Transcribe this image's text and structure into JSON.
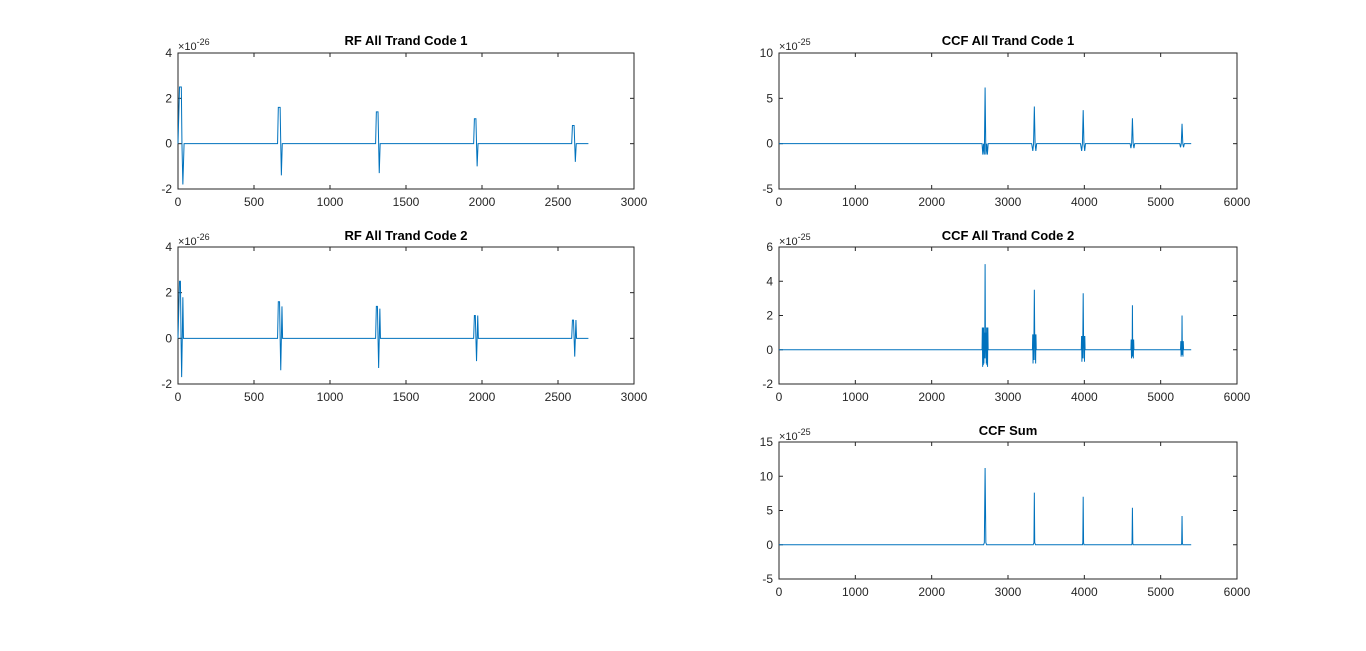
{
  "figure": {
    "background": "#ffffff",
    "line_color": "#0072bd",
    "axis_color": "#262626"
  },
  "chart_data": [
    {
      "id": "rf1",
      "type": "line",
      "title": "RF All Trand Code 1",
      "xlabel": "",
      "ylabel": "",
      "xlim": [
        0,
        3000
      ],
      "ylim": [
        -2,
        4
      ],
      "xticks": [
        0,
        500,
        1000,
        1500,
        2000,
        2500,
        3000
      ],
      "xtick_labels": [
        "0",
        "500",
        "1000",
        "1500",
        "2000",
        "2500",
        "3000"
      ],
      "yticks": [
        -2,
        0,
        2,
        4
      ],
      "ytick_labels": [
        "-2",
        "0",
        "2",
        "4"
      ],
      "y_exponent": {
        "base": "×10",
        "power": "-26"
      },
      "grid": false,
      "legend": "none",
      "series": [
        {
          "values": [
            [
              0,
              0
            ],
            [
              10,
              2.5
            ],
            [
              22,
              2.5
            ],
            [
              26,
              0
            ],
            [
              32,
              -1.8
            ],
            [
              40,
              0
            ],
            [
              60,
              0
            ],
            [
              655,
              0
            ],
            [
              660,
              1.6
            ],
            [
              672,
              1.6
            ],
            [
              676,
              0
            ],
            [
              680,
              -1.4
            ],
            [
              686,
              0
            ],
            [
              1300,
              0
            ],
            [
              1305,
              1.4
            ],
            [
              1316,
              1.4
            ],
            [
              1320,
              0
            ],
            [
              1324,
              -1.3
            ],
            [
              1330,
              0
            ],
            [
              1945,
              0
            ],
            [
              1950,
              1.1
            ],
            [
              1960,
              1.1
            ],
            [
              1964,
              0
            ],
            [
              1968,
              -1.0
            ],
            [
              1974,
              0
            ],
            [
              2590,
              0
            ],
            [
              2595,
              0.8
            ],
            [
              2606,
              0.8
            ],
            [
              2610,
              0
            ],
            [
              2614,
              -0.8
            ],
            [
              2620,
              0
            ],
            [
              2700,
              0
            ]
          ]
        }
      ]
    },
    {
      "id": "rf2",
      "type": "line",
      "title": "RF All Trand Code 2",
      "xlabel": "",
      "ylabel": "",
      "xlim": [
        0,
        3000
      ],
      "ylim": [
        -2,
        4
      ],
      "xticks": [
        0,
        500,
        1000,
        1500,
        2000,
        2500,
        3000
      ],
      "xtick_labels": [
        "0",
        "500",
        "1000",
        "1500",
        "2000",
        "2500",
        "3000"
      ],
      "yticks": [
        -2,
        0,
        2,
        4
      ],
      "ytick_labels": [
        "-2",
        "0",
        "2",
        "4"
      ],
      "y_exponent": {
        "base": "×10",
        "power": "-26"
      },
      "grid": false,
      "legend": "none",
      "series": [
        {
          "values": [
            [
              0,
              0
            ],
            [
              10,
              2.5
            ],
            [
              16,
              2.5
            ],
            [
              20,
              0
            ],
            [
              24,
              -1.7
            ],
            [
              28,
              0
            ],
            [
              32,
              1.8
            ],
            [
              36,
              0
            ],
            [
              60,
              0
            ],
            [
              655,
              0
            ],
            [
              660,
              1.6
            ],
            [
              668,
              1.6
            ],
            [
              672,
              0
            ],
            [
              676,
              -1.4
            ],
            [
              680,
              0
            ],
            [
              684,
              1.4
            ],
            [
              688,
              0
            ],
            [
              1300,
              0
            ],
            [
              1305,
              1.4
            ],
            [
              1312,
              1.4
            ],
            [
              1316,
              0
            ],
            [
              1320,
              -1.3
            ],
            [
              1324,
              0
            ],
            [
              1328,
              1.3
            ],
            [
              1332,
              0
            ],
            [
              1945,
              0
            ],
            [
              1950,
              1.0
            ],
            [
              1956,
              1.0
            ],
            [
              1960,
              0
            ],
            [
              1964,
              -1.0
            ],
            [
              1968,
              0
            ],
            [
              1972,
              1.0
            ],
            [
              1976,
              0
            ],
            [
              2590,
              0
            ],
            [
              2595,
              0.8
            ],
            [
              2602,
              0.8
            ],
            [
              2606,
              0
            ],
            [
              2610,
              -0.8
            ],
            [
              2614,
              0
            ],
            [
              2618,
              0.8
            ],
            [
              2622,
              0
            ],
            [
              2700,
              0
            ]
          ]
        }
      ]
    },
    {
      "id": "ccf1",
      "type": "line",
      "title": "CCF All Trand Code 1",
      "xlabel": "",
      "ylabel": "",
      "xlim": [
        0,
        6000
      ],
      "ylim": [
        -5,
        10
      ],
      "xticks": [
        0,
        1000,
        2000,
        3000,
        4000,
        5000,
        6000
      ],
      "xtick_labels": [
        "0",
        "1000",
        "2000",
        "3000",
        "4000",
        "5000",
        "6000"
      ],
      "yticks": [
        -5,
        0,
        5,
        10
      ],
      "ytick_labels": [
        "-5",
        "0",
        "5",
        "10"
      ],
      "y_exponent": {
        "base": "×10",
        "power": "-25"
      },
      "grid": false,
      "legend": "none",
      "series": [
        {
          "values": [
            [
              0,
              0
            ],
            [
              2660,
              0
            ],
            [
              2670,
              -1.2
            ],
            [
              2680,
              0
            ],
            [
              2690,
              -1.2
            ],
            [
              2700,
              6.2
            ],
            [
              2710,
              -1.2
            ],
            [
              2720,
              0
            ],
            [
              2730,
              -1.2
            ],
            [
              2740,
              0
            ],
            [
              3310,
              0
            ],
            [
              3325,
              -0.8
            ],
            [
              3335,
              0
            ],
            [
              3345,
              4.1
            ],
            [
              3355,
              0
            ],
            [
              3365,
              -0.8
            ],
            [
              3375,
              0
            ],
            [
              3950,
              0
            ],
            [
              3965,
              -0.8
            ],
            [
              3975,
              0
            ],
            [
              3985,
              3.7
            ],
            [
              3995,
              0
            ],
            [
              4005,
              -0.8
            ],
            [
              4015,
              0
            ],
            [
              4600,
              0
            ],
            [
              4610,
              -0.5
            ],
            [
              4620,
              0
            ],
            [
              4630,
              2.8
            ],
            [
              4640,
              0
            ],
            [
              4650,
              -0.5
            ],
            [
              4660,
              0
            ],
            [
              5250,
              0
            ],
            [
              5260,
              -0.4
            ],
            [
              5270,
              0
            ],
            [
              5280,
              2.2
            ],
            [
              5290,
              0
            ],
            [
              5300,
              -0.4
            ],
            [
              5310,
              0
            ],
            [
              5400,
              0
            ]
          ]
        }
      ]
    },
    {
      "id": "ccf2",
      "type": "line",
      "title": "CCF All Trand Code 2",
      "xlabel": "",
      "ylabel": "",
      "xlim": [
        0,
        6000
      ],
      "ylim": [
        -2,
        6
      ],
      "xticks": [
        0,
        1000,
        2000,
        3000,
        4000,
        5000,
        6000
      ],
      "xtick_labels": [
        "0",
        "1000",
        "2000",
        "3000",
        "4000",
        "5000",
        "6000"
      ],
      "yticks": [
        -2,
        0,
        2,
        4,
        6
      ],
      "ytick_labels": [
        "-2",
        "0",
        "2",
        "4",
        "6"
      ],
      "y_exponent": {
        "base": "×10",
        "power": "-25"
      },
      "grid": false,
      "legend": "none",
      "series": [
        {
          "values": [
            [
              0,
              0
            ],
            [
              2660,
              0
            ],
            [
              2664,
              1.3
            ],
            [
              2668,
              -1.0
            ],
            [
              2672,
              1.3
            ],
            [
              2676,
              -0.9
            ],
            [
              2680,
              1.3
            ],
            [
              2684,
              -0.8
            ],
            [
              2688,
              1.0
            ],
            [
              2692,
              -0.5
            ],
            [
              2696,
              0.8
            ],
            [
              2700,
              5.0
            ],
            [
              2704,
              0.8
            ],
            [
              2708,
              -0.5
            ],
            [
              2712,
              1.0
            ],
            [
              2716,
              -0.8
            ],
            [
              2720,
              1.3
            ],
            [
              2724,
              -0.9
            ],
            [
              2728,
              1.3
            ],
            [
              2732,
              -1.0
            ],
            [
              2736,
              1.3
            ],
            [
              2740,
              0
            ],
            [
              3320,
              0
            ],
            [
              3324,
              0.9
            ],
            [
              3328,
              -0.8
            ],
            [
              3332,
              0.9
            ],
            [
              3336,
              -0.6
            ],
            [
              3340,
              0.7
            ],
            [
              3345,
              3.5
            ],
            [
              3350,
              0.7
            ],
            [
              3354,
              -0.6
            ],
            [
              3358,
              0.9
            ],
            [
              3362,
              -0.8
            ],
            [
              3366,
              0.9
            ],
            [
              3370,
              0
            ],
            [
              3960,
              0
            ],
            [
              3964,
              0.8
            ],
            [
              3968,
              -0.7
            ],
            [
              3972,
              0.8
            ],
            [
              3976,
              -0.5
            ],
            [
              3980,
              0.6
            ],
            [
              3985,
              3.3
            ],
            [
              3990,
              0.6
            ],
            [
              3994,
              -0.5
            ],
            [
              3998,
              0.8
            ],
            [
              4002,
              -0.7
            ],
            [
              4006,
              0.8
            ],
            [
              4010,
              0
            ],
            [
              4610,
              0
            ],
            [
              4614,
              0.6
            ],
            [
              4618,
              -0.5
            ],
            [
              4622,
              0.6
            ],
            [
              4626,
              -0.4
            ],
            [
              4630,
              2.6
            ],
            [
              4634,
              -0.4
            ],
            [
              4638,
              0.6
            ],
            [
              4642,
              -0.5
            ],
            [
              4646,
              0.6
            ],
            [
              4650,
              0
            ],
            [
              5260,
              0
            ],
            [
              5264,
              0.5
            ],
            [
              5268,
              -0.4
            ],
            [
              5272,
              0.5
            ],
            [
              5276,
              -0.3
            ],
            [
              5280,
              2.0
            ],
            [
              5284,
              -0.3
            ],
            [
              5288,
              0.5
            ],
            [
              5292,
              -0.4
            ],
            [
              5296,
              0.5
            ],
            [
              5300,
              0
            ],
            [
              5400,
              0
            ]
          ]
        }
      ]
    },
    {
      "id": "ccfsum",
      "type": "line",
      "title": "CCF Sum",
      "xlabel": "",
      "ylabel": "",
      "xlim": [
        0,
        6000
      ],
      "ylim": [
        -5,
        15
      ],
      "xticks": [
        0,
        1000,
        2000,
        3000,
        4000,
        5000,
        6000
      ],
      "xtick_labels": [
        "0",
        "1000",
        "2000",
        "3000",
        "4000",
        "5000",
        "6000"
      ],
      "yticks": [
        -5,
        0,
        5,
        10,
        15
      ],
      "ytick_labels": [
        "-5",
        "0",
        "5",
        "10",
        "15"
      ],
      "y_exponent": {
        "base": "×10",
        "power": "-25"
      },
      "grid": false,
      "legend": "none",
      "series": [
        {
          "values": [
            [
              0,
              0
            ],
            [
              2680,
              0
            ],
            [
              2690,
              0.3
            ],
            [
              2700,
              11.2
            ],
            [
              2710,
              0.3
            ],
            [
              2720,
              0
            ],
            [
              3330,
              0
            ],
            [
              3340,
              0.3
            ],
            [
              3345,
              7.6
            ],
            [
              3350,
              0.3
            ],
            [
              3360,
              0
            ],
            [
              3975,
              0
            ],
            [
              3980,
              0.3
            ],
            [
              3985,
              7.0
            ],
            [
              3990,
              0.3
            ],
            [
              3995,
              0
            ],
            [
              4620,
              0
            ],
            [
              4625,
              0.2
            ],
            [
              4630,
              5.4
            ],
            [
              4635,
              0.2
            ],
            [
              4640,
              0
            ],
            [
              5270,
              0
            ],
            [
              5275,
              0.2
            ],
            [
              5280,
              4.2
            ],
            [
              5285,
              0.2
            ],
            [
              5290,
              0
            ],
            [
              5400,
              0
            ]
          ]
        }
      ]
    }
  ]
}
